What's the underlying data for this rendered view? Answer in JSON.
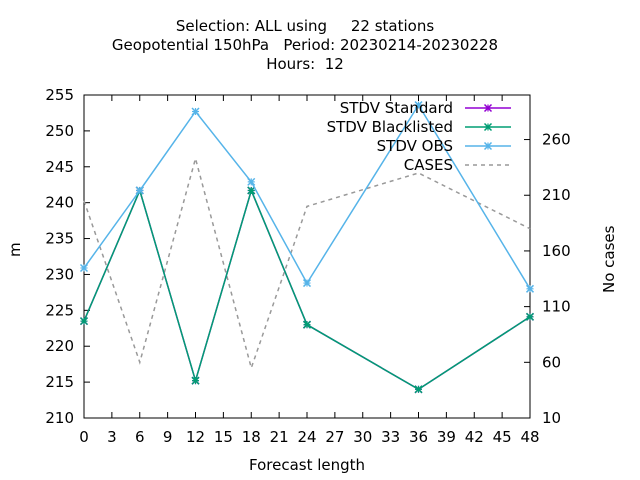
{
  "title": {
    "line1": "Selection: ALL using     22 stations",
    "line2": "Geopotential 150hPa   Period: 20230214-20230228",
    "line3": "Hours:  12"
  },
  "chart_data": {
    "type": "line",
    "title": "Selection: ALL using 22 stations / Geopotential 150hPa Period: 20230214-20230228 / Hours: 12",
    "xlabel": "Forecast length",
    "ylabel": "m",
    "y2label": "No cases",
    "xlim": [
      0,
      48
    ],
    "ylim": [
      210,
      255
    ],
    "y2lim": [
      10,
      300
    ],
    "x_ticks": [
      0,
      3,
      6,
      9,
      12,
      15,
      18,
      21,
      24,
      27,
      30,
      33,
      36,
      39,
      42,
      45,
      48
    ],
    "y_ticks": [
      210,
      215,
      220,
      225,
      230,
      235,
      240,
      245,
      250,
      255
    ],
    "y2_ticks": [
      10,
      60,
      110,
      160,
      210,
      260
    ],
    "grid": false,
    "legend_position": "top-right",
    "series": [
      {
        "name": "STDV Standard",
        "color": "#9400d3",
        "axis": "y",
        "marker": "x",
        "x": [
          0,
          6,
          12,
          18,
          24,
          36,
          48
        ],
        "values": [
          223.5,
          241.7,
          215.2,
          241.7,
          223.0,
          214.0,
          224.1
        ]
      },
      {
        "name": "STDV Blacklisted",
        "color": "#009e73",
        "axis": "y",
        "marker": "x",
        "x": [
          0,
          6,
          12,
          18,
          24,
          36,
          48
        ],
        "values": [
          223.5,
          241.7,
          215.2,
          241.7,
          223.0,
          214.0,
          224.1
        ]
      },
      {
        "name": "STDV OBS",
        "color": "#56b4e9",
        "axis": "y",
        "marker": "x",
        "x": [
          0,
          6,
          12,
          18,
          24,
          36,
          48
        ],
        "values": [
          230.9,
          241.7,
          252.7,
          242.9,
          228.8,
          253.6,
          228.0
        ]
      },
      {
        "name": "CASES",
        "color": "#999999",
        "axis": "y2",
        "marker": "none",
        "dashed": true,
        "x": [
          0,
          6,
          12,
          18,
          24,
          36,
          48
        ],
        "values": [
          205,
          60,
          243,
          55,
          200,
          230,
          180
        ]
      }
    ]
  }
}
